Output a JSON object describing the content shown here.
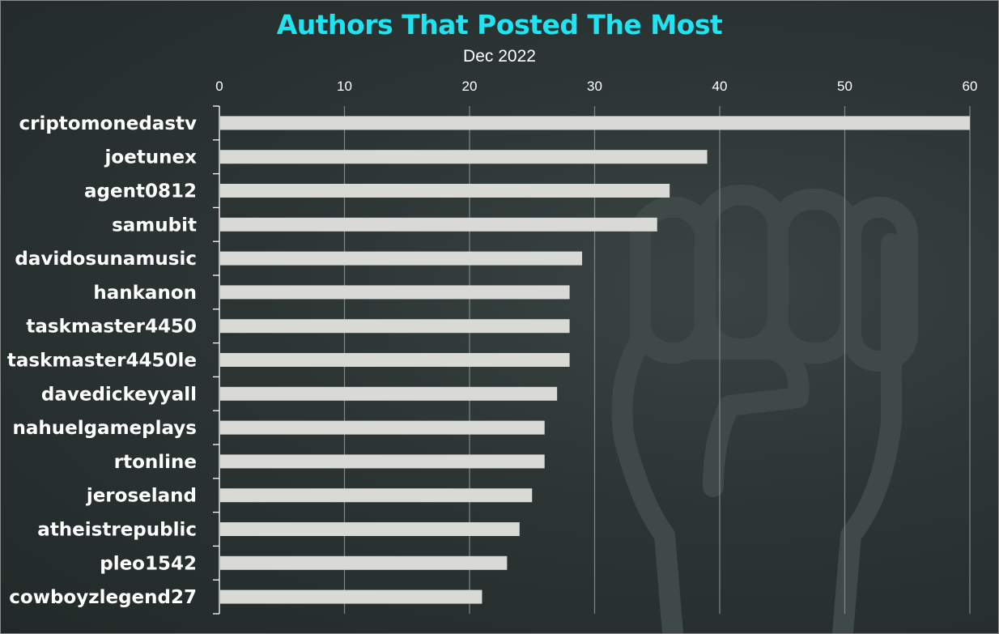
{
  "chart_data": {
    "type": "bar",
    "orientation": "horizontal",
    "title": "Authors That Posted The Most",
    "subtitle": "Dec 2022",
    "xlabel": "",
    "ylabel": "",
    "xlim": [
      0,
      60
    ],
    "x_ticks": [
      0,
      10,
      20,
      30,
      40,
      50,
      60
    ],
    "grid": true,
    "legend": "none",
    "categories": [
      "criptomonedastv",
      "joetunex",
      "agent0812",
      "samubit",
      "davidosunamusic",
      "hankanon",
      "taskmaster4450",
      "taskmaster4450le",
      "davedickeyyall",
      "nahuelgameplays",
      "rtonline",
      "jeroseland",
      "atheistrepublic",
      "pleo1542",
      "cowboyzlegend27"
    ],
    "values": [
      60,
      39,
      36,
      35,
      29,
      28,
      28,
      28,
      27,
      26,
      26,
      25,
      24,
      23,
      21
    ]
  },
  "colors": {
    "title": "#1fe3f0",
    "bar": "#d9d9d6",
    "gridline": "#7f8887",
    "background": "#2c3534",
    "watermark": "#3f4948"
  },
  "icons": {
    "watermark": "raised-fist-icon"
  }
}
